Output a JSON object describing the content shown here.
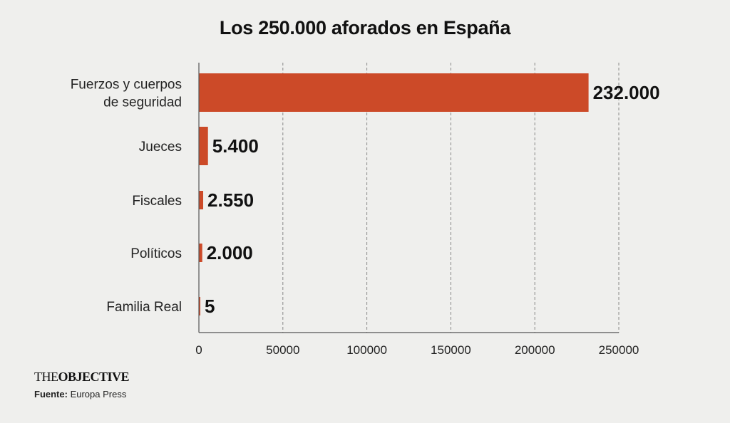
{
  "chart_data": {
    "type": "bar",
    "orientation": "horizontal",
    "title": "Los 250.000 aforados en España",
    "categories": [
      [
        "Fuerzos y cuerpos",
        "de seguridad"
      ],
      [
        "Jueces"
      ],
      [
        "Fiscales"
      ],
      [
        "Políticos"
      ],
      [
        "Familia Real"
      ]
    ],
    "values": [
      232000,
      5400,
      2550,
      2000,
      5
    ],
    "value_labels": [
      "232.000",
      "5.400",
      "2.550",
      "2.000",
      "5"
    ],
    "xlim": [
      0,
      250000
    ],
    "x_ticks": [
      0,
      50000,
      100000,
      150000,
      200000,
      250000
    ],
    "x_tick_labels": [
      "0",
      "50000",
      "100000",
      "150000",
      "200000",
      "250000"
    ],
    "xlabel": "",
    "ylabel": "",
    "grid": "vertical dashed",
    "bar_color": "#cc4a28"
  },
  "footer": {
    "brand_part1": "THE",
    "brand_part2": "OBJECTIVE",
    "source_label": "Fuente:",
    "source_value": "Europa Press"
  }
}
